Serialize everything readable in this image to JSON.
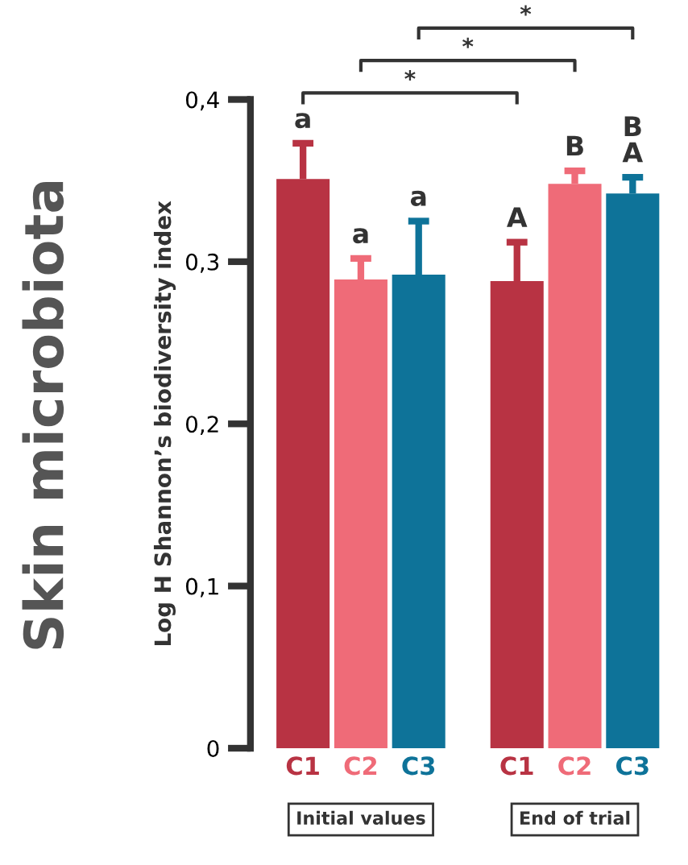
{
  "chart_data": {
    "type": "bar",
    "title": "Skin microbiota",
    "ylabel": "Log H Shannon’s biodiversity index",
    "categories": [
      "C1",
      "C2",
      "C3",
      "C1",
      "C2",
      "C3"
    ],
    "values": [
      0.351,
      0.289,
      0.292,
      0.288,
      0.348,
      0.342
    ],
    "colors": [
      "#b83343",
      "#ef6b78",
      "#0e7399",
      "#b83343",
      "#ef6b78",
      "#0e7399"
    ],
    "errors": [
      [
        0.351,
        0.373
      ],
      [
        0.289,
        0.302
      ],
      [
        0.292,
        0.325
      ],
      [
        0.288,
        0.312
      ],
      [
        0.348,
        0.356
      ],
      [
        0.342,
        0.352
      ]
    ],
    "value_labels": [
      "a",
      "a",
      "a",
      "A",
      "B",
      "B\nA"
    ],
    "annotations": [
      "*",
      "*",
      "*",
      "Initial values",
      "End of trial"
    ],
    "ylim": [
      0,
      0.4
    ],
    "yticks": [
      0,
      {
        "value": 0.1,
        "label": "0,1"
      },
      {
        "value": 0.2,
        "label": "0,2"
      },
      {
        "value": 0.3,
        "label": "0,3"
      },
      {
        "value": 0.4,
        "label": "0,4"
      }
    ],
    "grid": false
  }
}
